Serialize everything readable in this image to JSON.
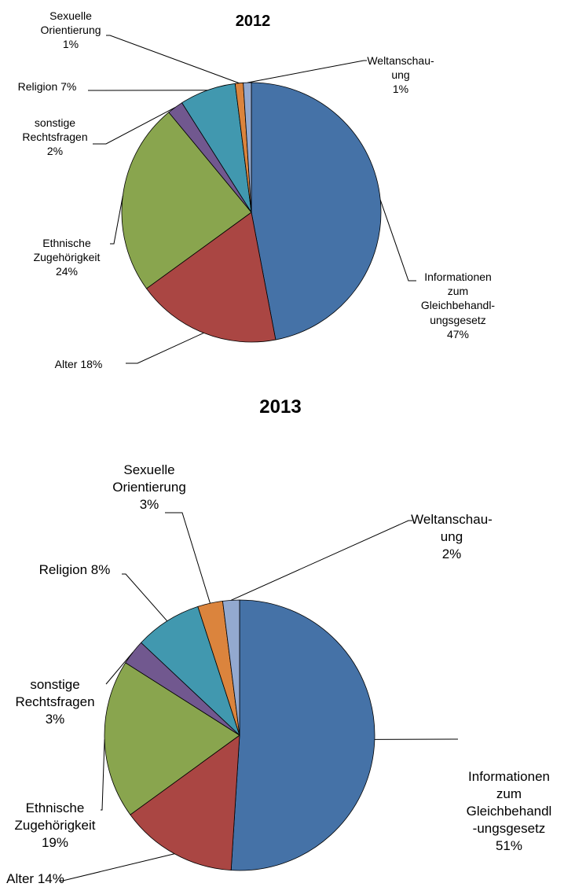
{
  "chart_data": [
    {
      "type": "pie",
      "title": "2012",
      "categories": [
        "Informationen\nzum\nGleichbehandl-\nungsgesetz",
        "Alter",
        "Ethnische\nZugehörigkeit",
        "sonstige\nRechtsfragen",
        "Religion",
        "Sexuelle\nOrientierung",
        "Weltanschau-\nung"
      ],
      "values": [
        47,
        18,
        24,
        2,
        7,
        1,
        1
      ],
      "value_labels": [
        "47%",
        "18%",
        "24%",
        "2%",
        "7%",
        "1%",
        "1%"
      ],
      "colors": [
        "#4572a7",
        "#aa4643",
        "#89a54e",
        "#71588f",
        "#4198af",
        "#db843d",
        "#93a9cf"
      ]
    },
    {
      "type": "pie",
      "title": "2013",
      "categories": [
        "Informationen\nzum\nGleichbehandl\n-ungsgesetz",
        "Alter",
        "Ethnische\nZugehörigkeit",
        "sonstige\nRechtsfragen",
        "Religion",
        "Sexuelle\nOrientierung",
        "Weltanschau-\nung"
      ],
      "values": [
        51,
        14,
        19,
        3,
        8,
        3,
        2
      ],
      "value_labels": [
        "51%",
        "14%",
        "19%",
        "3%",
        "8%",
        "3%",
        "2%"
      ],
      "colors": [
        "#4572a7",
        "#aa4643",
        "#89a54e",
        "#71588f",
        "#4198af",
        "#db843d",
        "#93a9cf"
      ]
    }
  ]
}
